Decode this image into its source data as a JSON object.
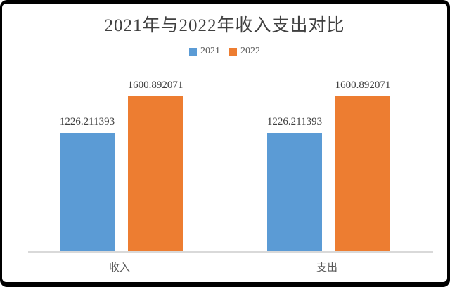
{
  "frame": {
    "border_color": "#000000",
    "background": "#ffffff"
  },
  "chart_data": {
    "type": "bar",
    "title": "2021年与2022年收入支出对比",
    "categories": [
      "收入",
      "支出"
    ],
    "series": [
      {
        "name": "2021",
        "color": "#5B9BD5",
        "values": [
          1226.211393,
          1226.211393
        ],
        "labels": [
          "1226.211393",
          "1226.211393"
        ]
      },
      {
        "name": "2022",
        "color": "#ED7D31",
        "values": [
          1600.892071,
          1600.892071
        ],
        "labels": [
          "1600.892071",
          "1600.892071"
        ]
      }
    ],
    "legend_position": "top-center",
    "grid": false,
    "xlabel": "",
    "ylabel": "",
    "ylim": [
      0,
      1800
    ],
    "axis_line_color": "#D9D9D9"
  },
  "text_colors": {
    "title": "#404040",
    "data_label": "#404040",
    "category": "#595959",
    "legend": "#595959"
  }
}
